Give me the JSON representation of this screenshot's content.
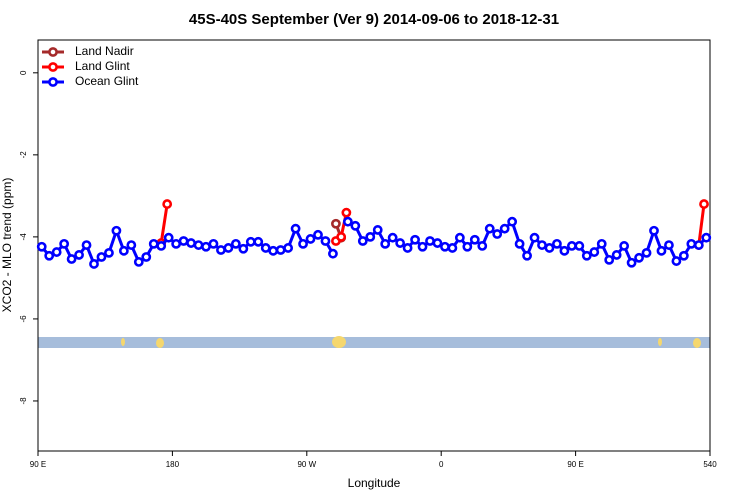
{
  "chart_data": {
    "type": "line",
    "title": "45S-40S September (Ver 9)   2014-09-06 to 2018-12-31",
    "x_label": "Longitude",
    "y_label": "XCO2 - MLO trend (ppm)",
    "xlim": [
      90,
      540
    ],
    "xticks": [
      {
        "value": 90,
        "label": "90 E"
      },
      180,
      {
        "value": 270,
        "label": "90 W"
      },
      {
        "value": 360,
        "label": "0"
      },
      {
        "value": 450,
        "label": "90 E"
      },
      540
    ],
    "ylim": [
      -9.22,
      0.8
    ],
    "yticks": [
      0,
      -2,
      -4,
      -6,
      -8
    ],
    "legend": "top-left",
    "series": [
      {
        "name": "Land Nadir",
        "color": "#a52a2a",
        "x": [
          289.5,
          293
        ],
        "values": [
          -3.68,
          -4.02
        ]
      },
      {
        "name": "Land Glint",
        "color": "#ff0000",
        "x": [
          172.5,
          176.5,
          null,
          289.5,
          293,
          296.5,
          null,
          532.5,
          536
        ],
        "values": [
          -4.15,
          -3.2,
          null,
          -4.1,
          -4.0,
          -3.41,
          null,
          -4.2,
          -3.2
        ]
      },
      {
        "name": "Ocean Glint",
        "color": "#0000ff",
        "x": [
          92.5,
          97.5,
          102.5,
          107.5,
          112.5,
          117.5,
          122.5,
          127.5,
          132.5,
          137.5,
          142.5,
          147.5,
          152.5,
          157.5,
          162.5,
          167.5,
          172.5,
          177.5,
          182.5,
          187.5,
          192.5,
          197.5,
          202.5,
          207.5,
          212.5,
          217.5,
          222.5,
          227.5,
          232.5,
          237.5,
          242.5,
          247.5,
          252.5,
          257.5,
          262.5,
          267.5,
          272.5,
          277.5,
          282.5,
          287.5,
          292.5,
          297.5,
          302.5,
          307.5,
          312.5,
          317.5,
          322.5,
          327.5,
          332.5,
          337.5,
          342.5,
          347.5,
          352.5,
          357.5,
          362.5,
          367.5,
          372.5,
          377.5,
          382.5,
          387.5,
          392.5,
          397.5,
          402.5,
          407.5,
          412.5,
          417.5,
          422.5,
          427.5,
          432.5,
          437.5,
          442.5,
          447.5,
          452.5,
          457.5,
          462.5,
          467.5,
          472.5,
          477.5,
          482.5,
          487.5,
          492.5,
          497.5,
          502.5,
          507.5,
          512.5,
          517.5,
          522.5,
          527.5,
          532.5,
          537.5
        ],
        "values": [
          -4.24,
          -4.46,
          -4.37,
          -4.17,
          -4.54,
          -4.44,
          -4.2,
          -4.66,
          -4.49,
          -4.39,
          -3.85,
          -4.34,
          -4.2,
          -4.61,
          -4.49,
          -4.17,
          -4.22,
          -4.02,
          -4.17,
          -4.1,
          -4.15,
          -4.2,
          -4.24,
          -4.17,
          -4.32,
          -4.27,
          -4.17,
          -4.29,
          -4.12,
          -4.12,
          -4.27,
          -4.34,
          -4.32,
          -4.27,
          -3.8,
          -4.17,
          -4.05,
          -3.95,
          -4.1,
          -4.41,
          null,
          -3.63,
          -3.73,
          -4.1,
          -4.0,
          -3.83,
          -4.17,
          -4.02,
          -4.15,
          -4.27,
          -4.07,
          -4.24,
          -4.1,
          -4.15,
          -4.24,
          -4.27,
          -4.02,
          -4.24,
          -4.07,
          -4.22,
          -3.8,
          -3.93,
          -3.8,
          -3.63,
          -4.17,
          -4.46,
          -4.02,
          -4.2,
          -4.27,
          -4.17,
          -4.34,
          -4.22,
          -4.22,
          -4.46,
          -4.37,
          -4.17,
          -4.56,
          -4.44,
          -4.22,
          -4.63,
          -4.51,
          -4.39,
          -3.85,
          -4.34,
          -4.2,
          -4.59,
          -4.46,
          -4.17,
          -4.2,
          -4.02
        ]
      }
    ]
  }
}
